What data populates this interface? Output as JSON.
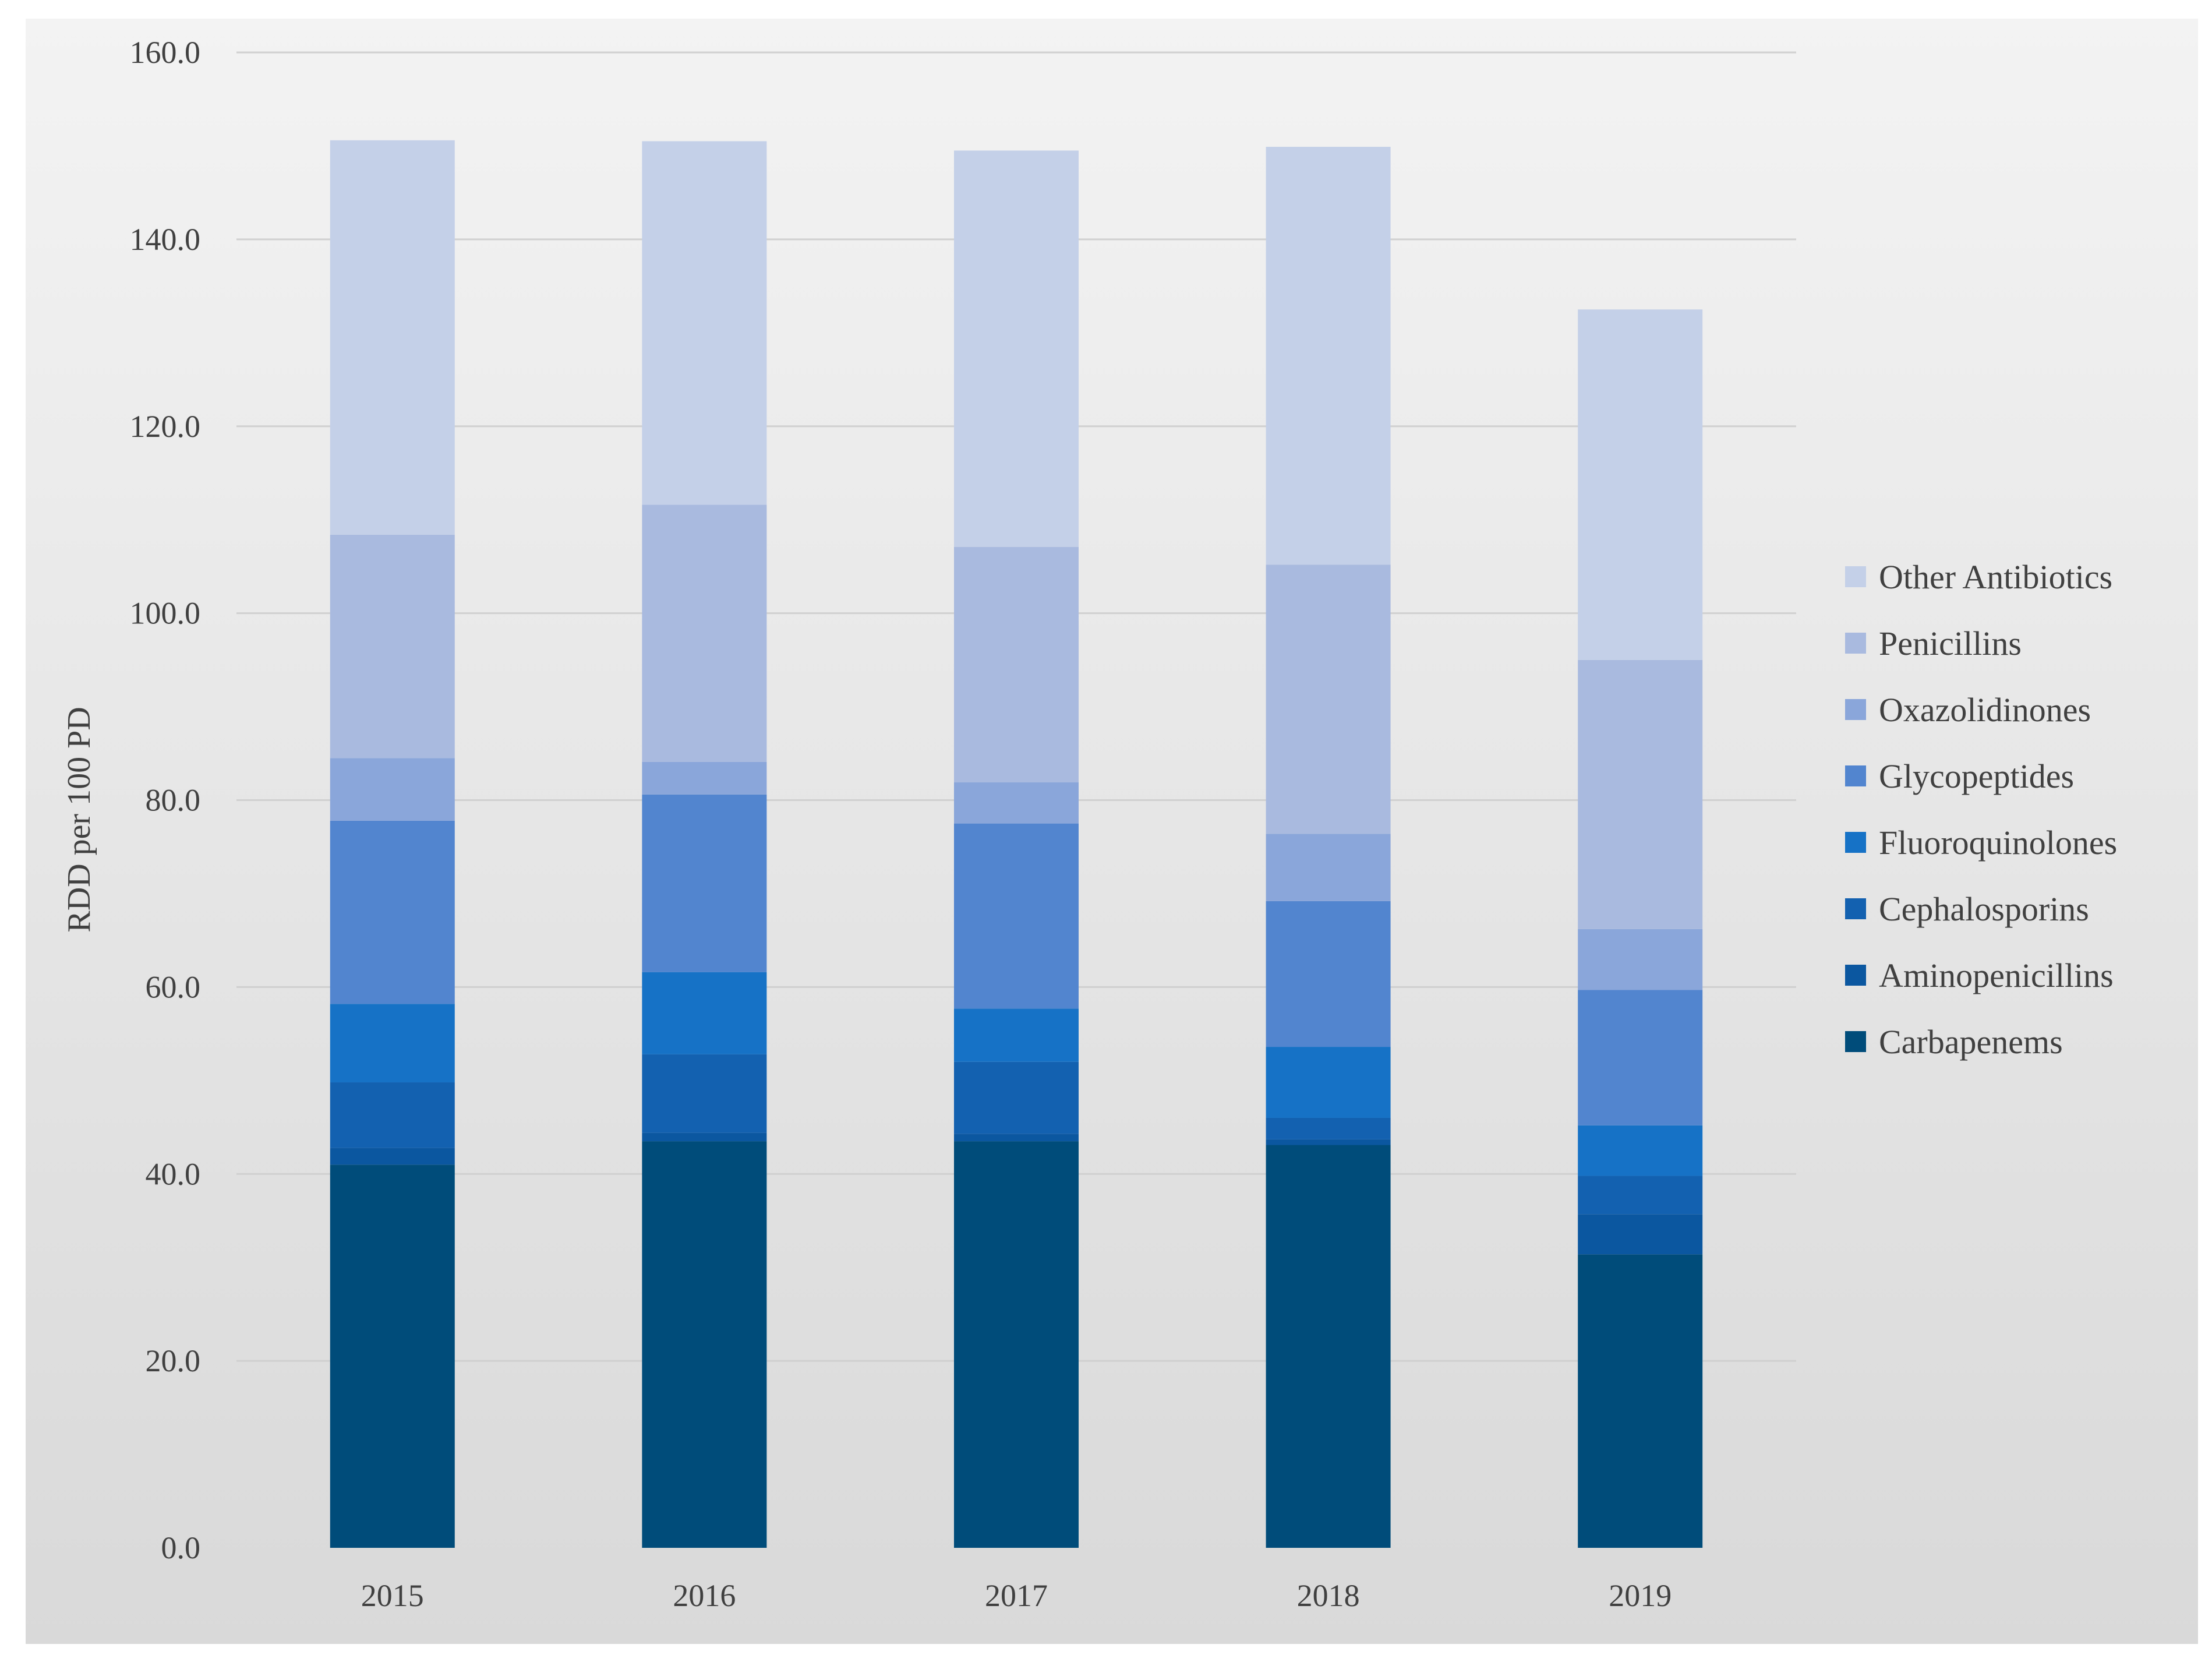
{
  "chart_data": {
    "type": "bar",
    "stacked": true,
    "title": "",
    "xlabel": "",
    "ylabel": "RDD per 100 PD",
    "ylim": [
      0,
      160
    ],
    "yticks": [
      "0.0",
      "20.0",
      "40.0",
      "60.0",
      "80.0",
      "100.0",
      "120.0",
      "140.0",
      "160.0"
    ],
    "categories": [
      "2015",
      "2016",
      "2017",
      "2018",
      "2019"
    ],
    "grid": true,
    "legend_position": "right",
    "series": [
      {
        "name": "Carbapenems",
        "color": "#004c7a",
        "values": [
          41.0,
          43.5,
          43.5,
          43.1,
          31.4
        ]
      },
      {
        "name": "Aminopenicillins",
        "color": "#0b57a0",
        "values": [
          1.8,
          0.9,
          0.8,
          0.6,
          4.3
        ]
      },
      {
        "name": "Cephalosporins",
        "color": "#1361b0",
        "values": [
          7.0,
          8.4,
          7.7,
          2.3,
          4.1
        ]
      },
      {
        "name": "Fluoroquinolones",
        "color": "#1672c6",
        "values": [
          8.4,
          8.8,
          5.7,
          7.6,
          5.4
        ]
      },
      {
        "name": "Glycopeptides",
        "color": "#5285cf",
        "values": [
          19.6,
          19.0,
          19.8,
          15.6,
          14.5
        ]
      },
      {
        "name": "Oxazolidinones",
        "color": "#8aa6da",
        "values": [
          6.7,
          3.5,
          4.4,
          7.2,
          6.5
        ]
      },
      {
        "name": "Penicillins",
        "color": "#a9badf",
        "values": [
          23.9,
          27.5,
          25.2,
          28.8,
          28.8
        ]
      },
      {
        "name": "Other Antibiotics",
        "color": "#c4d0e8",
        "values": [
          42.2,
          38.9,
          42.4,
          44.7,
          37.5
        ]
      }
    ],
    "legend_order": [
      "Other Antibiotics",
      "Penicillins",
      "Oxazolidinones",
      "Glycopeptides",
      "Fluoroquinolones",
      "Cephalosporins",
      "Aminopenicillins",
      "Carbapenems"
    ]
  }
}
